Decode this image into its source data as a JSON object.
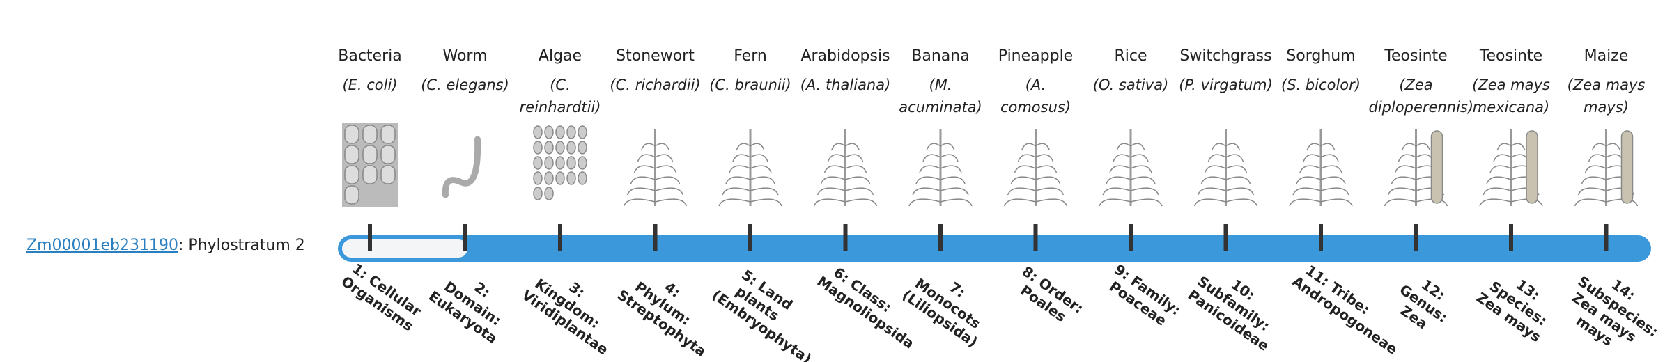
{
  "gene": {
    "id": "Zm00001eb231190",
    "text": ": Phylostratum 2"
  },
  "columns": [
    {
      "name": "Bacteria",
      "species": "(E. coli)",
      "stratum": "1: Cellular Organisms"
    },
    {
      "name": "Worm",
      "species": "(C. elegans)",
      "stratum": "2: Domain: Eukaryota"
    },
    {
      "name": "Algae",
      "species": "(C. reinhardtii)",
      "stratum": "3: Kingdom: Viridiplantae"
    },
    {
      "name": "Stonewort",
      "species": "(C. richardii)",
      "stratum": "4: Phylum: Streptophyta"
    },
    {
      "name": "Fern",
      "species": "(C. braunii)",
      "stratum": "5: Land plants (Embryophyta)"
    },
    {
      "name": "Arabidopsis",
      "species": "(A. thaliana)",
      "stratum": "6: Class: Magnoliopsida"
    },
    {
      "name": "Banana",
      "species": "(M. acuminata)",
      "stratum": "7: Monocots (Liliopsida)"
    },
    {
      "name": "Pineapple",
      "species": "(A. comosus)",
      "stratum": "8: Order: Poales"
    },
    {
      "name": "Rice",
      "species": "(O. sativa)",
      "stratum": "9: Family: Poaceae"
    },
    {
      "name": "Switchgrass",
      "species": "(P. virgatum)",
      "stratum": "10: Subfamily: Panicoideae"
    },
    {
      "name": "Sorghum",
      "species": "(S. bicolor)",
      "stratum": "11: Tribe: Andropogoneae"
    },
    {
      "name": "Teosinte",
      "species": "(Zea diploperennis)",
      "stratum": "12: Genus: Zea"
    },
    {
      "name": "Teosinte",
      "species": "(Zea mays mexicana)",
      "stratum": "13: Species: Zea mays"
    },
    {
      "name": "Maize",
      "species": "(Zea mays mays)",
      "stratum": "14: Subspecies: Zea mays mays"
    }
  ]
}
